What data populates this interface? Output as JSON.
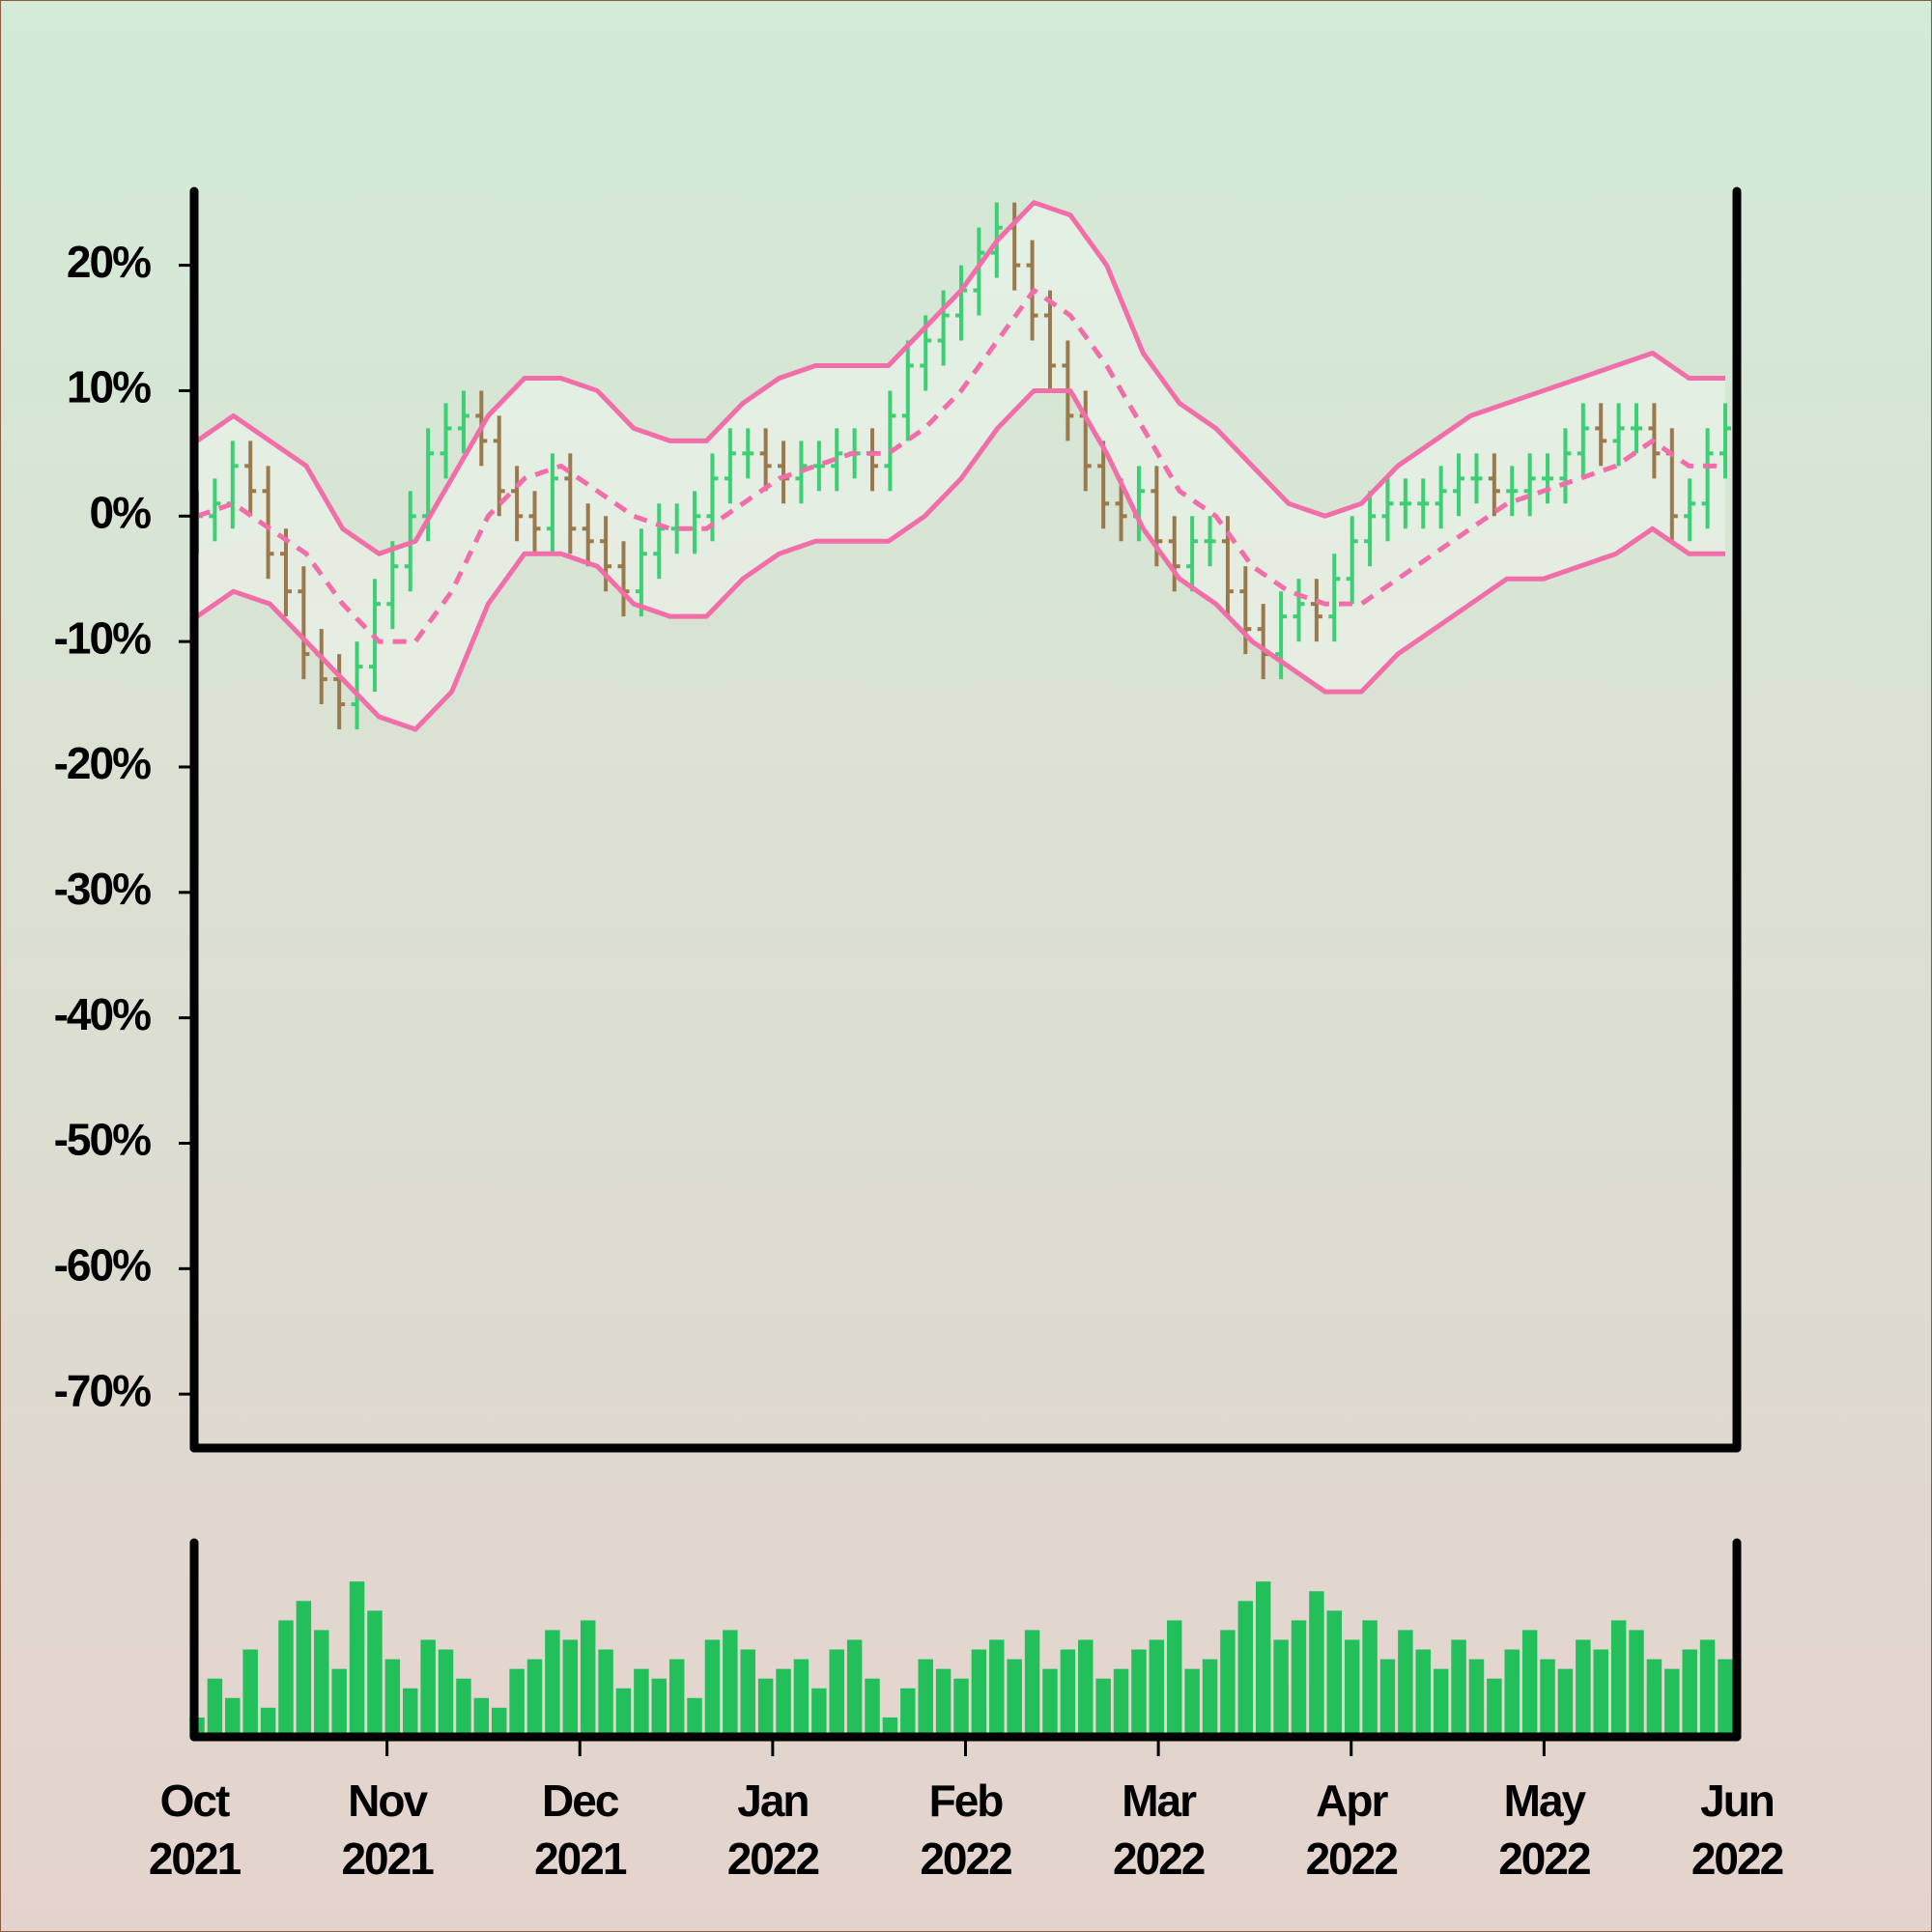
{
  "chart_data": {
    "type": "ohlc",
    "ylim": [
      -74.3,
      25.9
    ],
    "yticks": [
      {
        "value": 20,
        "label": "20%"
      },
      {
        "value": 10,
        "label": "10%"
      },
      {
        "value": 0,
        "label": "0%"
      },
      {
        "value": -10,
        "label": "-10%"
      },
      {
        "value": -20,
        "label": "-20%"
      },
      {
        "value": -30,
        "label": "-30%"
      },
      {
        "value": -40,
        "label": "-40%"
      },
      {
        "value": -50,
        "label": "-50%"
      },
      {
        "value": -60,
        "label": "-60%"
      },
      {
        "value": -70,
        "label": "-70%"
      }
    ],
    "x_labels": [
      [
        "Oct",
        "2021"
      ],
      [
        "Nov",
        "2021"
      ],
      [
        "Dec",
        "2021"
      ],
      [
        "Jan",
        "2022"
      ],
      [
        "Feb",
        "2022"
      ],
      [
        "Mar",
        "2022"
      ],
      [
        "Apr",
        "2022"
      ],
      [
        "May",
        "2022"
      ],
      [
        "Jun",
        "2022"
      ]
    ],
    "up_color": "#3ccf73",
    "down_color": "#9a7a4c",
    "band_color": "#f26ea8",
    "volume_color": "#22bf5a",
    "open": [
      -1,
      0,
      1,
      4,
      2,
      -3,
      -6,
      -11,
      -13,
      -15,
      -12,
      -7,
      -4,
      0,
      5,
      7,
      8,
      6,
      2,
      0,
      -1,
      3,
      -1,
      -2,
      -4,
      -6,
      -3,
      -1,
      -1,
      0,
      3,
      5,
      5,
      4,
      3,
      4,
      4,
      5,
      5,
      4,
      8,
      12,
      14,
      16,
      18,
      21,
      23,
      20,
      16,
      12,
      8,
      4,
      1,
      0,
      2,
      -2,
      -4,
      -2,
      -2,
      -6,
      -9,
      -11,
      -8,
      -7,
      -8,
      -5,
      -2,
      0,
      1,
      1,
      1,
      2,
      3,
      3,
      2,
      2,
      3,
      3,
      5,
      7,
      6,
      7,
      7,
      5,
      0,
      1,
      5
    ],
    "high": [
      2,
      3,
      6,
      6,
      4,
      -1,
      -4,
      -9,
      -11,
      -10,
      -5,
      -2,
      2,
      7,
      9,
      10,
      10,
      8,
      4,
      2,
      5,
      5,
      1,
      0,
      -2,
      -1,
      1,
      1,
      2,
      5,
      7,
      7,
      7,
      6,
      6,
      6,
      7,
      7,
      7,
      10,
      14,
      16,
      18,
      20,
      23,
      25,
      25,
      22,
      18,
      14,
      10,
      6,
      3,
      4,
      4,
      0,
      0,
      0,
      0,
      -4,
      -7,
      -6,
      -5,
      -5,
      -3,
      0,
      2,
      3,
      3,
      3,
      4,
      5,
      5,
      5,
      4,
      5,
      5,
      7,
      9,
      9,
      9,
      9,
      9,
      7,
      3,
      7,
      9
    ],
    "low": [
      -3,
      -2,
      -1,
      0,
      -5,
      -8,
      -13,
      -15,
      -17,
      -17,
      -14,
      -9,
      -6,
      -2,
      3,
      5,
      4,
      0,
      -2,
      -3,
      -3,
      -3,
      -4,
      -6,
      -8,
      -8,
      -5,
      -3,
      -3,
      -2,
      1,
      3,
      2,
      1,
      1,
      2,
      2,
      3,
      2,
      2,
      6,
      10,
      12,
      14,
      16,
      19,
      18,
      14,
      10,
      6,
      2,
      -1,
      -2,
      -2,
      -4,
      -6,
      -6,
      -4,
      -8,
      -11,
      -13,
      -13,
      -10,
      -10,
      -10,
      -7,
      -4,
      -2,
      -1,
      -1,
      -1,
      0,
      1,
      0,
      0,
      0,
      1,
      1,
      3,
      4,
      4,
      5,
      3,
      -2,
      -2,
      -1,
      3
    ],
    "close": [
      0,
      1,
      4,
      2,
      -3,
      -6,
      -11,
      -13,
      -15,
      -12,
      -7,
      -4,
      0,
      5,
      7,
      8,
      6,
      2,
      0,
      -1,
      3,
      -1,
      -2,
      -4,
      -6,
      -3,
      -1,
      -1,
      0,
      3,
      5,
      5,
      4,
      3,
      4,
      4,
      5,
      5,
      4,
      8,
      12,
      14,
      16,
      18,
      21,
      23,
      20,
      16,
      12,
      8,
      4,
      1,
      0,
      2,
      -2,
      -4,
      -2,
      -2,
      -6,
      -9,
      -11,
      -8,
      -7,
      -8,
      -5,
      -2,
      0,
      1,
      1,
      1,
      2,
      3,
      3,
      2,
      2,
      3,
      3,
      5,
      7,
      6,
      7,
      7,
      5,
      0,
      1,
      5,
      7
    ],
    "volume": [
      10,
      30,
      20,
      45,
      15,
      60,
      70,
      55,
      35,
      80,
      65,
      40,
      25,
      50,
      45,
      30,
      20,
      15,
      35,
      40,
      55,
      50,
      60,
      45,
      25,
      35,
      30,
      40,
      20,
      50,
      55,
      45,
      30,
      35,
      40,
      25,
      45,
      50,
      30,
      10,
      25,
      40,
      35,
      30,
      45,
      50,
      40,
      55,
      35,
      45,
      50,
      30,
      35,
      45,
      50,
      60,
      35,
      40,
      55,
      70,
      80,
      50,
      60,
      75,
      65,
      50,
      60,
      40,
      55,
      45,
      35,
      50,
      40,
      30,
      45,
      55,
      40,
      35,
      50,
      45,
      60,
      55,
      40,
      35,
      45,
      50,
      40
    ],
    "volume_lim": [
      0,
      100
    ],
    "band_upper": [
      6,
      8,
      6,
      4,
      -1,
      -3,
      -2,
      3,
      8,
      11,
      11,
      10,
      7,
      6,
      6,
      9,
      11,
      12,
      12,
      12,
      15,
      18,
      22,
      25,
      24,
      20,
      13,
      9,
      7,
      4,
      1,
      0,
      1,
      4,
      6,
      8,
      9,
      10,
      11,
      12,
      13,
      11,
      11
    ],
    "band_middle": [
      0,
      1,
      -1,
      -3,
      -7,
      -10,
      -10,
      -6,
      0,
      3,
      4,
      2,
      0,
      -1,
      -1,
      1,
      3,
      4,
      5,
      5,
      7,
      10,
      14,
      18,
      16,
      12,
      7,
      2,
      0,
      -4,
      -6,
      -7,
      -7,
      -5,
      -3,
      -1,
      1,
      2,
      3,
      4,
      6,
      4,
      4
    ],
    "band_lower": [
      -8,
      -6,
      -7,
      -10,
      -13,
      -16,
      -17,
      -14,
      -7,
      -3,
      -3,
      -4,
      -7,
      -8,
      -8,
      -5,
      -3,
      -2,
      -2,
      -2,
      0,
      3,
      7,
      10,
      10,
      5,
      -1,
      -5,
      -7,
      -10,
      -12,
      -14,
      -14,
      -11,
      -9,
      -7,
      -5,
      -5,
      -4,
      -3,
      -1,
      -3,
      -3
    ]
  }
}
